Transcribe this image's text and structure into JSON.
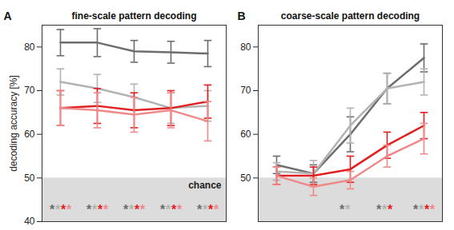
{
  "chart_data": [
    {
      "type": "line",
      "panel": "A",
      "title": "fine-scale pattern decoding",
      "y_label": "decoding accuracy [%]",
      "x": [
        1,
        2,
        3,
        4,
        5
      ],
      "xlim": [
        0.5,
        5.5
      ],
      "ylim": [
        40,
        85
      ],
      "yticks": [
        40,
        50,
        60,
        70,
        80
      ],
      "tick_labels": "y",
      "chance": 50,
      "chance_label": "chance",
      "significance_label": "*",
      "series": [
        {
          "color": "#6d6d6d",
          "values": [
            81,
            81,
            79,
            78.8,
            78.5
          ],
          "errors": [
            3,
            3.2,
            2.5,
            2.5,
            3
          ],
          "significant": [
            true,
            true,
            true,
            true,
            true
          ]
        },
        {
          "color": "#b3b3b3",
          "values": [
            72,
            70.5,
            68.5,
            66,
            66.5
          ],
          "errors": [
            3,
            3.2,
            3,
            3.5,
            3.5
          ],
          "significant": [
            true,
            true,
            true,
            true,
            true
          ]
        },
        {
          "color": "#e02020",
          "values": [
            66,
            66.5,
            65.5,
            66,
            67.5
          ],
          "errors": [
            4,
            4,
            4,
            4,
            3.8
          ],
          "significant": [
            true,
            true,
            true,
            true,
            true
          ]
        },
        {
          "color": "#f08a8a",
          "values": [
            66,
            65.5,
            64.5,
            65.5,
            63
          ],
          "errors": [
            4,
            4,
            4,
            4,
            4.5
          ],
          "significant": [
            true,
            true,
            true,
            true,
            true
          ]
        }
      ]
    },
    {
      "type": "line",
      "panel": "B",
      "title": "coarse-scale pattern decoding",
      "x": [
        1,
        2,
        3,
        4,
        5
      ],
      "xlim": [
        0.5,
        5.5
      ],
      "ylim": [
        40,
        85
      ],
      "yticks": [
        50,
        60,
        70,
        80
      ],
      "tick_labels": "y",
      "chance": 50,
      "significance_label": "*",
      "series": [
        {
          "color": "#6d6d6d",
          "values": [
            53,
            51,
            60,
            70.5,
            77.5
          ],
          "errors": [
            2,
            2,
            4,
            3.5,
            3.2
          ],
          "significant": [
            false,
            false,
            true,
            true,
            true
          ]
        },
        {
          "color": "#b3b3b3",
          "values": [
            51.5,
            51,
            62,
            70.5,
            72
          ],
          "errors": [
            2,
            3,
            4,
            3.5,
            3
          ],
          "significant": [
            false,
            false,
            true,
            true,
            true
          ]
        },
        {
          "color": "#e02020",
          "values": [
            50.5,
            50.5,
            52,
            57.5,
            62
          ],
          "errors": [
            2,
            2,
            3,
            3,
            3
          ],
          "significant": [
            false,
            false,
            false,
            true,
            true
          ]
        },
        {
          "color": "#f08a8a",
          "values": [
            50.5,
            48,
            49.5,
            55,
            59
          ],
          "errors": [
            2,
            2,
            2,
            2.5,
            3.5
          ],
          "significant": [
            false,
            false,
            false,
            false,
            true
          ]
        }
      ]
    }
  ]
}
